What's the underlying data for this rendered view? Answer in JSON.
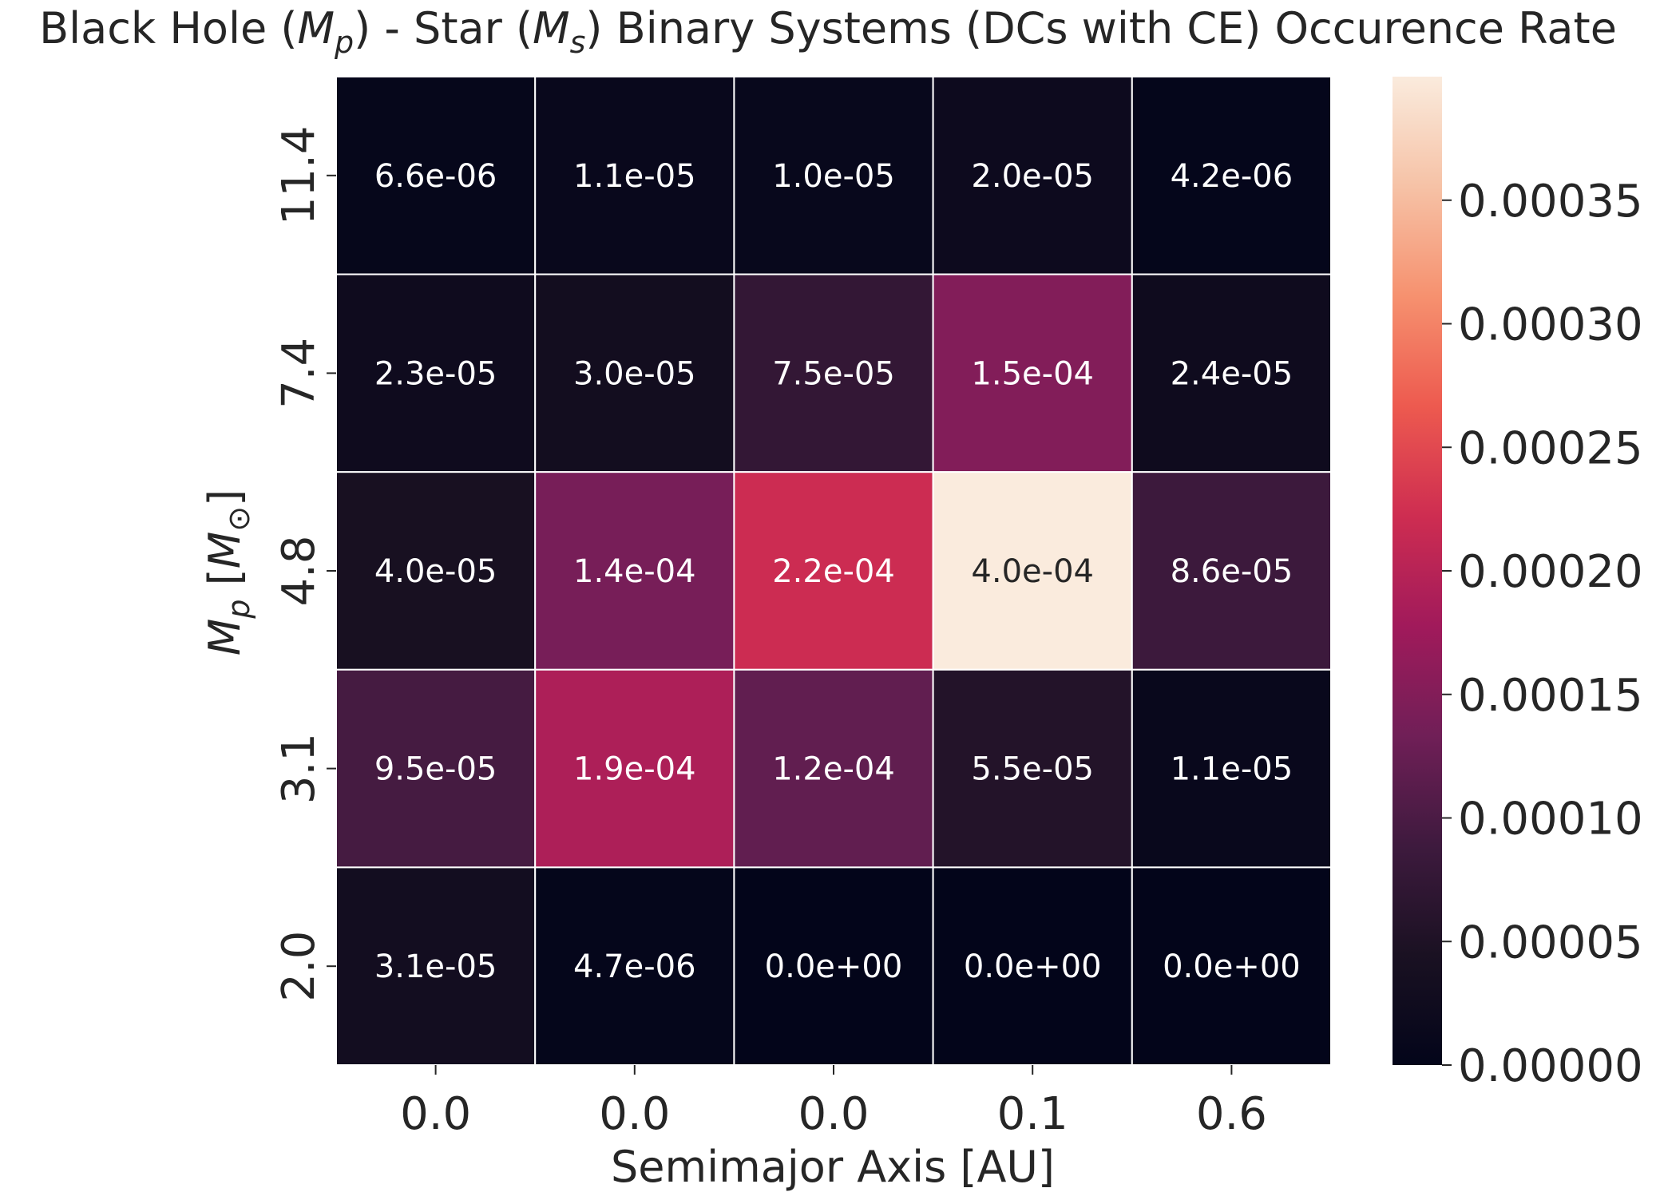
{
  "chart_data": {
    "type": "heatmap",
    "title_parts": {
      "prefix": "Black Hole (",
      "mp_symbol": "M",
      "mp_sub": "p",
      "mid": ")  - Star (",
      "ms_symbol": "M",
      "ms_sub": "s",
      "suffix": ") Binary Systems (DCs with CE) Occurence Rate"
    },
    "xlabel": "Semimajor Axis [AU]",
    "ylabel_parts": {
      "symbol": "M",
      "sub": "p",
      "unit_open": "  [",
      "unit_symbol": "M",
      "unit_sub": "⊙",
      "unit_close": "]"
    },
    "x_tick_labels": [
      "0.0",
      "0.0",
      "0.0",
      "0.1",
      "0.6"
    ],
    "y_tick_labels": [
      "11.4",
      "7.4",
      "4.8",
      "3.1",
      "2.0"
    ],
    "values": [
      [
        6.6e-06,
        1.1e-05,
        1e-05,
        2e-05,
        4.2e-06
      ],
      [
        2.3e-05,
        3e-05,
        7.5e-05,
        0.00015,
        2.4e-05
      ],
      [
        4e-05,
        0.00014,
        0.00022,
        0.0004,
        8.6e-05
      ],
      [
        9.5e-05,
        0.00019,
        0.00012,
        5.5e-05,
        1.1e-05
      ],
      [
        3.1e-05,
        4.7e-06,
        0.0,
        0.0,
        0.0
      ]
    ],
    "cell_labels": [
      [
        "6.6e-06",
        "1.1e-05",
        "1.0e-05",
        "2.0e-05",
        "4.2e-06"
      ],
      [
        "2.3e-05",
        "3.0e-05",
        "7.5e-05",
        "1.5e-04",
        "2.4e-05"
      ],
      [
        "4.0e-05",
        "1.4e-04",
        "2.2e-04",
        "4.0e-04",
        "8.6e-05"
      ],
      [
        "9.5e-05",
        "1.9e-04",
        "1.2e-04",
        "5.5e-05",
        "1.1e-05"
      ],
      [
        "3.1e-05",
        "4.7e-06",
        "0.0e+00",
        "0.0e+00",
        "0.0e+00"
      ]
    ],
    "colorbar": {
      "range": [
        0,
        0.0004
      ],
      "ticks": [
        0,
        5e-05,
        0.0001,
        0.00015,
        0.0002,
        0.00025,
        0.0003,
        0.00035
      ],
      "tick_labels": [
        "0.00000",
        "0.00005",
        "0.00010",
        "0.00015",
        "0.00020",
        "0.00025",
        "0.00030",
        "0.00035"
      ]
    },
    "colormap": "rocket",
    "colormap_stops": [
      "#03051a",
      "#1a1122",
      "#3e1a3e",
      "#701f57",
      "#a11a5b",
      "#ce2d51",
      "#ed5a4f",
      "#f6916f",
      "#f6c2a6",
      "#faebdd"
    ],
    "cell_border_color": "#ffffff",
    "grid": false
  }
}
